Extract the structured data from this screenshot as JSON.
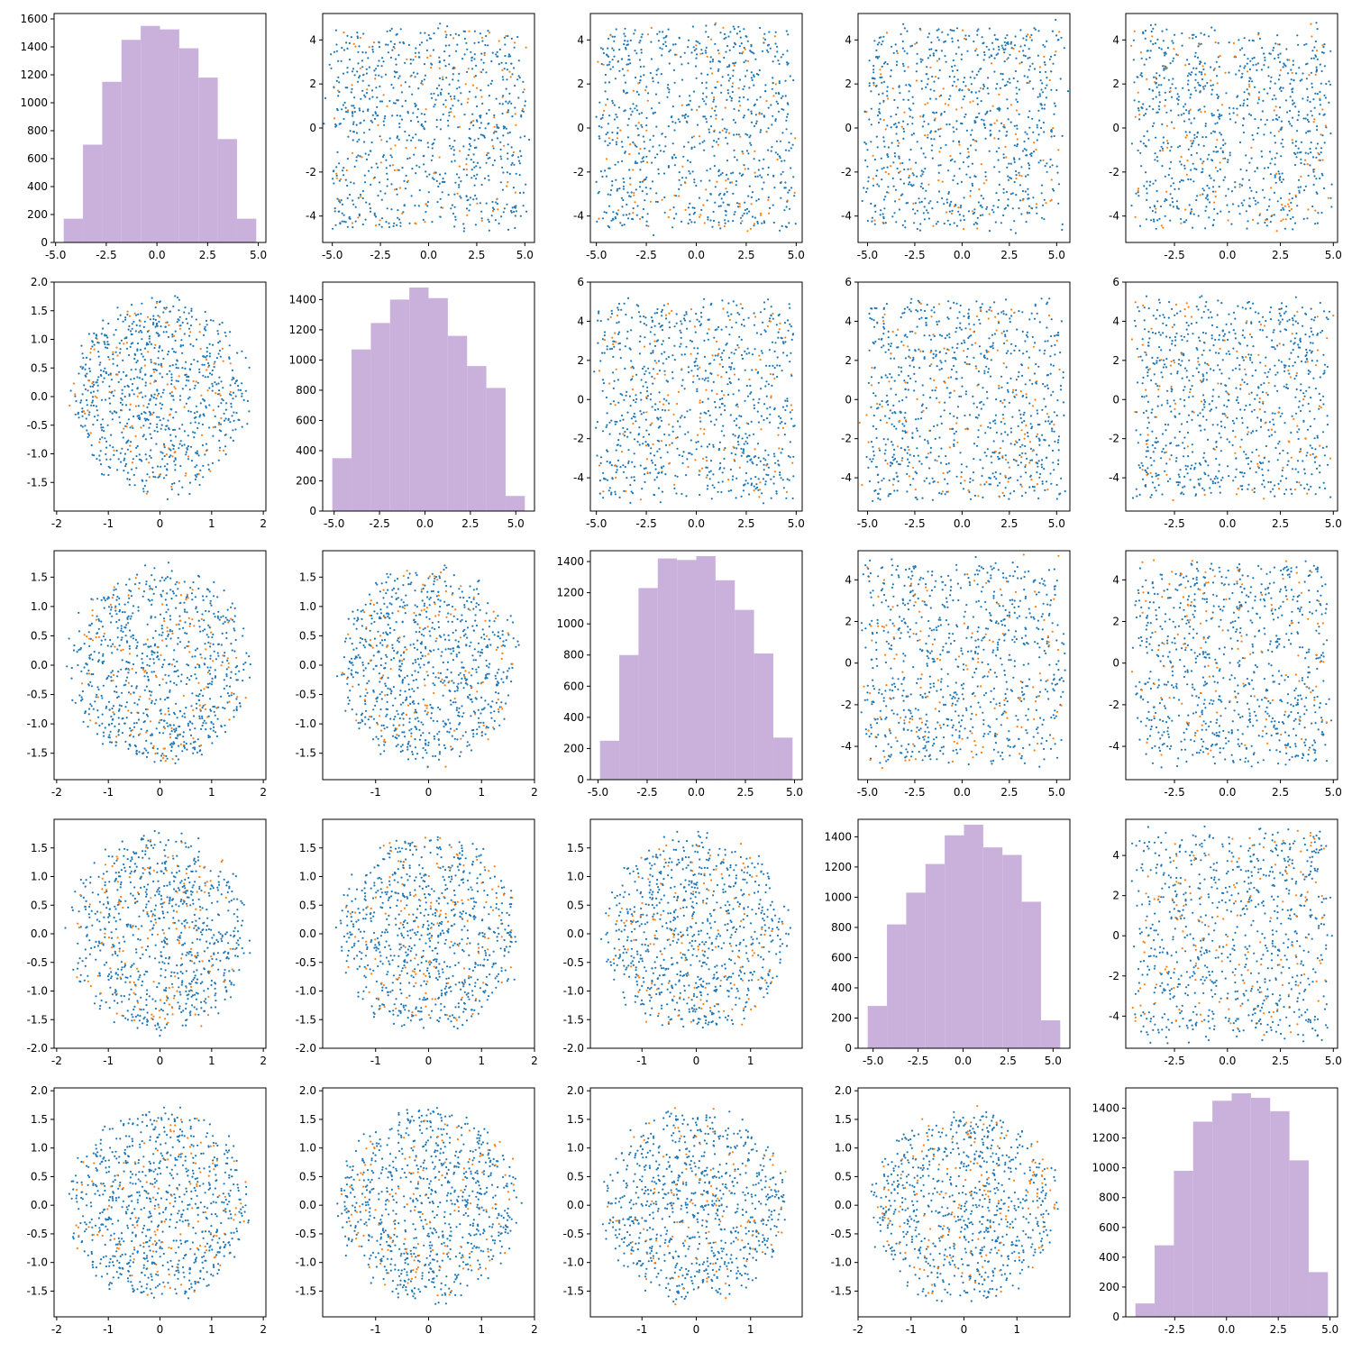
{
  "colors": {
    "blue": "#1f77b4",
    "orange": "#ff7f0e",
    "hist": "#c9b1dc"
  },
  "chart_data": {
    "type": "pairplot",
    "grid": "off",
    "title": "",
    "series": [
      {
        "color": "#1f77b4"
      },
      {
        "color": "#ff7f0e"
      }
    ],
    "histograms": [
      {
        "row": 0,
        "col": 0,
        "edges": [
          -4.6,
          -3.65,
          -2.7,
          -1.75,
          -0.8,
          0.15,
          1.1,
          2.05,
          3.0,
          3.95,
          4.9
        ],
        "counts": [
          170,
          700,
          1150,
          1450,
          1550,
          1525,
          1390,
          1180,
          740,
          170
        ],
        "xticks": [
          "-5.0",
          "-2.5",
          "0.0",
          "2.5",
          "5.0"
        ],
        "yticks": [
          "0",
          "200",
          "400",
          "600",
          "800",
          "1000",
          "1200",
          "1400",
          "1600"
        ]
      },
      {
        "row": 1,
        "col": 1,
        "edges": [
          -5.1,
          -4.04,
          -2.98,
          -1.92,
          -0.86,
          0.2,
          1.26,
          2.32,
          3.38,
          4.44,
          5.5
        ],
        "counts": [
          350,
          1070,
          1245,
          1400,
          1480,
          1410,
          1160,
          960,
          815,
          100
        ],
        "xticks": [
          "-5.0",
          "-2.5",
          "0.0",
          "2.5",
          "5.0"
        ],
        "yticks": [
          "0",
          "200",
          "400",
          "600",
          "800",
          "1000",
          "1200",
          "1400"
        ]
      },
      {
        "row": 2,
        "col": 2,
        "edges": [
          -4.9,
          -3.92,
          -2.94,
          -1.96,
          -0.98,
          0.0,
          0.98,
          1.96,
          2.94,
          3.92,
          4.9
        ],
        "counts": [
          250,
          800,
          1230,
          1420,
          1410,
          1435,
          1280,
          1090,
          810,
          270
        ],
        "xticks": [
          "-5.0",
          "-2.5",
          "0.0",
          "2.5",
          "5.0"
        ],
        "yticks": [
          "0",
          "200",
          "400",
          "600",
          "800",
          "1000",
          "1200",
          "1400"
        ]
      },
      {
        "row": 3,
        "col": 3,
        "edges": [
          -5.3,
          -4.23,
          -3.16,
          -2.09,
          -1.02,
          0.05,
          1.12,
          2.19,
          3.26,
          4.33,
          5.4
        ],
        "counts": [
          280,
          820,
          1030,
          1220,
          1410,
          1480,
          1330,
          1280,
          970,
          185
        ],
        "xticks": [
          "-5.0",
          "-2.5",
          "0.0",
          "2.5",
          "5.0"
        ],
        "yticks": [
          "0",
          "200",
          "400",
          "600",
          "800",
          "1000",
          "1200",
          "1400"
        ]
      },
      {
        "row": 4,
        "col": 4,
        "edges": [
          -4.4,
          -3.47,
          -2.54,
          -1.61,
          -0.68,
          0.25,
          1.18,
          2.11,
          3.04,
          3.97,
          4.9
        ],
        "counts": [
          90,
          480,
          980,
          1310,
          1450,
          1500,
          1470,
          1380,
          1050,
          300
        ],
        "xticks": [
          "-2.5",
          "0.0",
          "2.5",
          "5.0"
        ],
        "yticks": [
          "0",
          "200",
          "400",
          "600",
          "800",
          "1000",
          "1200",
          "1400"
        ]
      }
    ],
    "scatter_panels": [
      {
        "row": 0,
        "col": 1,
        "x_shape": "box",
        "x_range": [
          -5.0,
          5.0
        ],
        "y_shape": "box",
        "y_range": [
          -4.5,
          4.5
        ],
        "xlim": [
          -5.5,
          5.5
        ],
        "ylim": [
          -5.2,
          5.2
        ],
        "xticks": [
          "-5.0",
          "-2.5",
          "0.0",
          "2.5",
          "5.0"
        ],
        "yticks": [
          "-4",
          "-2",
          "0",
          "2",
          "4"
        ]
      },
      {
        "row": 0,
        "col": 2,
        "x_shape": "box",
        "x_range": [
          -4.8,
          4.8
        ],
        "y_shape": "box",
        "y_range": [
          -4.5,
          4.5
        ],
        "xlim": [
          -5.3,
          5.3
        ],
        "ylim": [
          -5.2,
          5.2
        ],
        "xticks": [
          "-5.0",
          "-2.5",
          "0.0",
          "2.5",
          "5.0"
        ],
        "yticks": [
          "-4",
          "-2",
          "0",
          "2",
          "4"
        ]
      },
      {
        "row": 0,
        "col": 3,
        "x_shape": "box",
        "x_range": [
          -5.0,
          5.2
        ],
        "y_shape": "box",
        "y_range": [
          -4.5,
          4.5
        ],
        "xlim": [
          -5.5,
          5.7
        ],
        "ylim": [
          -5.2,
          5.2
        ],
        "xticks": [
          "-5.0",
          "-2.5",
          "0.0",
          "2.5",
          "5.0"
        ],
        "yticks": [
          "-4",
          "-2",
          "0",
          "2",
          "4"
        ]
      },
      {
        "row": 0,
        "col": 4,
        "x_shape": "box",
        "x_range": [
          -4.3,
          4.7
        ],
        "y_shape": "box",
        "y_range": [
          -4.5,
          4.5
        ],
        "xlim": [
          -4.8,
          5.2
        ],
        "ylim": [
          -5.2,
          5.2
        ],
        "xticks": [
          "-2.5",
          "0.0",
          "2.5",
          "5.0"
        ],
        "yticks": [
          "-4",
          "-2",
          "0",
          "2",
          "4"
        ]
      },
      {
        "row": 1,
        "col": 0,
        "x_shape": "disc",
        "x_range": [
          -1.85,
          1.85
        ],
        "y_shape": "disc",
        "y_range": [
          -1.8,
          1.8
        ],
        "xlim": [
          -2.05,
          2.05
        ],
        "ylim": [
          -2.0,
          2.0
        ],
        "xticks": [
          "-2",
          "-1",
          "0",
          "1",
          "2"
        ],
        "yticks": [
          "-1.5",
          "-1.0",
          "-0.5",
          "0.0",
          "0.5",
          "1.0",
          "1.5",
          "2.0"
        ]
      },
      {
        "row": 1,
        "col": 2,
        "x_shape": "box",
        "x_range": [
          -4.8,
          4.8
        ],
        "y_shape": "box",
        "y_range": [
          -5.0,
          5.0
        ],
        "xlim": [
          -5.3,
          5.3
        ],
        "ylim": [
          -5.7,
          6.0
        ],
        "xticks": [
          "-5.0",
          "-2.5",
          "0.0",
          "2.5",
          "5.0"
        ],
        "yticks": [
          "-4",
          "-2",
          "0",
          "2",
          "4",
          "6"
        ]
      },
      {
        "row": 1,
        "col": 3,
        "x_shape": "box",
        "x_range": [
          -5.0,
          5.2
        ],
        "y_shape": "box",
        "y_range": [
          -5.0,
          5.0
        ],
        "xlim": [
          -5.5,
          5.7
        ],
        "ylim": [
          -5.7,
          6.0
        ],
        "xticks": [
          "-5.0",
          "-2.5",
          "0.0",
          "2.5",
          "5.0"
        ],
        "yticks": [
          "-4",
          "-2",
          "0",
          "2",
          "4",
          "6"
        ]
      },
      {
        "row": 1,
        "col": 4,
        "x_shape": "box",
        "x_range": [
          -4.3,
          4.7
        ],
        "y_shape": "box",
        "y_range": [
          -5.0,
          5.0
        ],
        "xlim": [
          -4.8,
          5.2
        ],
        "ylim": [
          -5.7,
          6.0
        ],
        "xticks": [
          "-2.5",
          "0.0",
          "2.5",
          "5.0"
        ],
        "yticks": [
          "-4",
          "-2",
          "0",
          "2",
          "4",
          "6"
        ]
      },
      {
        "row": 2,
        "col": 0,
        "x_shape": "disc",
        "x_range": [
          -1.85,
          1.85
        ],
        "y_shape": "disc",
        "y_range": [
          -1.8,
          1.8
        ],
        "xlim": [
          -2.05,
          2.05
        ],
        "ylim": [
          -1.95,
          1.95
        ],
        "xticks": [
          "-2",
          "-1",
          "0",
          "1",
          "2"
        ],
        "yticks": [
          "-1.5",
          "-1.0",
          "-0.5",
          "0.0",
          "0.5",
          "1.0",
          "1.5"
        ]
      },
      {
        "row": 2,
        "col": 1,
        "x_shape": "disc",
        "x_range": [
          -1.8,
          1.8
        ],
        "y_shape": "disc",
        "y_range": [
          -1.8,
          1.8
        ],
        "xlim": [
          -2.0,
          2.0
        ],
        "ylim": [
          -1.95,
          1.95
        ],
        "xticks": [
          "-1",
          "0",
          "1",
          "2"
        ],
        "yticks": [
          "-1.5",
          "-1.0",
          "-0.5",
          "0.0",
          "0.5",
          "1.0",
          "1.5"
        ]
      },
      {
        "row": 2,
        "col": 3,
        "x_shape": "box",
        "x_range": [
          -5.0,
          5.2
        ],
        "y_shape": "box",
        "y_range": [
          -4.8,
          4.8
        ],
        "xlim": [
          -5.5,
          5.7
        ],
        "ylim": [
          -5.6,
          5.4
        ],
        "xticks": [
          "-5.0",
          "-2.5",
          "0.0",
          "2.5",
          "5.0"
        ],
        "yticks": [
          "-4",
          "-2",
          "0",
          "2",
          "4"
        ]
      },
      {
        "row": 2,
        "col": 4,
        "x_shape": "box",
        "x_range": [
          -4.3,
          4.7
        ],
        "y_shape": "box",
        "y_range": [
          -4.8,
          4.8
        ],
        "xlim": [
          -4.8,
          5.2
        ],
        "ylim": [
          -5.6,
          5.4
        ],
        "xticks": [
          "-2.5",
          "0.0",
          "2.5",
          "5.0"
        ],
        "yticks": [
          "-4",
          "-2",
          "0",
          "2",
          "4"
        ]
      },
      {
        "row": 3,
        "col": 0,
        "x_shape": "disc",
        "x_range": [
          -1.85,
          1.85
        ],
        "y_shape": "disc",
        "y_range": [
          -1.85,
          1.85
        ],
        "xlim": [
          -2.05,
          2.05
        ],
        "ylim": [
          -2.0,
          2.0
        ],
        "xticks": [
          "-2",
          "-1",
          "0",
          "1",
          "2"
        ],
        "yticks": [
          "-2.0",
          "-1.5",
          "-1.0",
          "-0.5",
          "0.0",
          "0.5",
          "1.0",
          "1.5"
        ]
      },
      {
        "row": 3,
        "col": 1,
        "x_shape": "disc",
        "x_range": [
          -1.8,
          1.8
        ],
        "y_shape": "disc",
        "y_range": [
          -1.85,
          1.85
        ],
        "xlim": [
          -2.0,
          2.0
        ],
        "ylim": [
          -2.0,
          2.0
        ],
        "xticks": [
          "-1",
          "0",
          "1",
          "2"
        ],
        "yticks": [
          "-2.0",
          "-1.5",
          "-1.0",
          "-0.5",
          "0.0",
          "0.5",
          "1.0",
          "1.5"
        ]
      },
      {
        "row": 3,
        "col": 2,
        "x_shape": "disc",
        "x_range": [
          -1.8,
          1.8
        ],
        "y_shape": "disc",
        "y_range": [
          -1.85,
          1.85
        ],
        "xlim": [
          -1.95,
          1.95
        ],
        "ylim": [
          -2.0,
          2.0
        ],
        "xticks": [
          "-1",
          "0",
          "1"
        ],
        "yticks": [
          "-2.0",
          "-1.5",
          "-1.0",
          "-0.5",
          "0.0",
          "0.5",
          "1.0",
          "1.5"
        ]
      },
      {
        "row": 3,
        "col": 4,
        "x_shape": "box",
        "x_range": [
          -4.3,
          4.7
        ],
        "y_shape": "box",
        "y_range": [
          -5.1,
          5.2
        ],
        "xlim": [
          -4.8,
          5.2
        ],
        "ylim": [
          -5.6,
          5.8
        ],
        "xticks": [
          "-2.5",
          "0.0",
          "2.5",
          "5.0"
        ],
        "yticks": [
          "-4",
          "-2",
          "0",
          "2",
          "4"
        ]
      },
      {
        "row": 4,
        "col": 0,
        "x_shape": "disc",
        "x_range": [
          -1.85,
          1.85
        ],
        "y_shape": "disc",
        "y_range": [
          -1.8,
          1.8
        ],
        "xlim": [
          -2.05,
          2.05
        ],
        "ylim": [
          -1.95,
          2.05
        ],
        "xticks": [
          "-2",
          "-1",
          "0",
          "1",
          "2"
        ],
        "yticks": [
          "-1.5",
          "-1.0",
          "-0.5",
          "0.0",
          "0.5",
          "1.0",
          "1.5",
          "2.0"
        ]
      },
      {
        "row": 4,
        "col": 1,
        "x_shape": "disc",
        "x_range": [
          -1.8,
          1.8
        ],
        "y_shape": "disc",
        "y_range": [
          -1.8,
          1.8
        ],
        "xlim": [
          -2.0,
          2.0
        ],
        "ylim": [
          -1.95,
          2.05
        ],
        "xticks": [
          "-1",
          "0",
          "1",
          "2"
        ],
        "yticks": [
          "-1.5",
          "-1.0",
          "-0.5",
          "0.0",
          "0.5",
          "1.0",
          "1.5",
          "2.0"
        ]
      },
      {
        "row": 4,
        "col": 2,
        "x_shape": "disc",
        "x_range": [
          -1.8,
          1.8
        ],
        "y_shape": "disc",
        "y_range": [
          -1.8,
          1.8
        ],
        "xlim": [
          -1.95,
          1.95
        ],
        "ylim": [
          -1.95,
          2.05
        ],
        "xticks": [
          "-1",
          "0",
          "1"
        ],
        "yticks": [
          "-1.5",
          "-1.0",
          "-0.5",
          "0.0",
          "0.5",
          "1.0",
          "1.5",
          "2.0"
        ]
      },
      {
        "row": 4,
        "col": 3,
        "x_shape": "disc",
        "x_range": [
          -1.85,
          1.85
        ],
        "y_shape": "disc",
        "y_range": [
          -1.8,
          1.8
        ],
        "xlim": [
          -2.0,
          2.0
        ],
        "ylim": [
          -1.95,
          2.05
        ],
        "xticks": [
          "-2",
          "-1",
          "0",
          "1"
        ],
        "yticks": [
          "-1.5",
          "-1.0",
          "-0.5",
          "0.0",
          "0.5",
          "1.0",
          "1.5",
          "2.0"
        ]
      }
    ]
  }
}
